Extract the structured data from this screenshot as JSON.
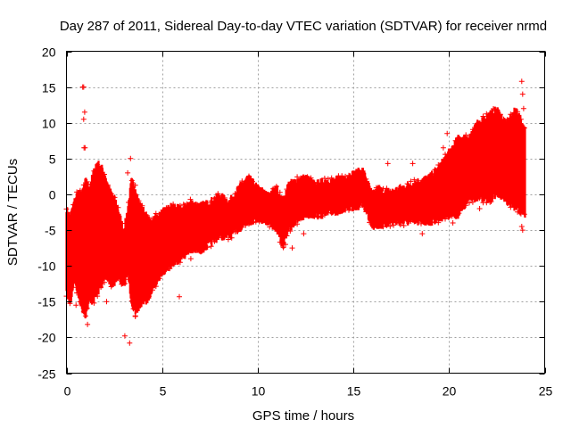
{
  "chart_data": {
    "type": "scatter",
    "title": "Day 287 of 2011, Sidereal Day-to-day VTEC variation (SDTVAR) for receiver nrmd",
    "xlabel": "GPS time / hours",
    "ylabel": "SDTVAR / TECUs",
    "xlim": [
      0,
      25
    ],
    "ylim": [
      -25,
      20
    ],
    "xticks": [
      0,
      5,
      10,
      15,
      20,
      25
    ],
    "yticks": [
      -25,
      -20,
      -15,
      -10,
      -5,
      0,
      5,
      10,
      15,
      20
    ],
    "xtick_labels": [
      "0",
      "5",
      "10",
      "15",
      "20",
      "25"
    ],
    "ytick_labels": [
      "-25",
      "-20",
      "-15",
      "-10",
      "-5",
      "0",
      "5",
      "10",
      "15",
      "20"
    ],
    "grid": true,
    "marker": "+",
    "color": "#ff0000",
    "series": [
      {
        "name": "SDTVAR",
        "band": {
          "x": [
            0.0,
            0.2,
            0.4,
            0.6,
            0.8,
            1.0,
            1.2,
            1.4,
            1.6,
            1.8,
            2.0,
            2.2,
            2.4,
            2.6,
            2.8,
            3.0,
            3.2,
            3.4,
            3.6,
            3.8,
            4.0,
            4.2,
            4.4,
            4.6,
            4.8,
            5.0,
            5.5,
            6.0,
            6.5,
            7.0,
            7.5,
            8.0,
            8.5,
            9.0,
            9.5,
            10.0,
            10.5,
            11.0,
            11.3,
            11.6,
            12.0,
            12.5,
            13.0,
            13.5,
            14.0,
            14.5,
            15.0,
            15.5,
            16.0,
            16.3,
            16.5,
            17.0,
            17.5,
            18.0,
            18.5,
            19.0,
            19.5,
            20.0,
            20.5,
            21.0,
            21.5,
            22.0,
            22.5,
            23.0,
            23.5,
            24.0
          ],
          "upper": [
            -2.0,
            -3.0,
            -1.0,
            0.5,
            0.0,
            2.0,
            1.0,
            3.0,
            4.5,
            4.0,
            3.0,
            1.0,
            0.0,
            -1.0,
            -3.0,
            -5.0,
            -2.0,
            2.0,
            1.0,
            -1.0,
            -2.0,
            -3.0,
            -4.0,
            -3.0,
            -3.0,
            -2.5,
            -1.5,
            -2.0,
            -1.0,
            -1.5,
            -1.0,
            0.0,
            -1.0,
            1.0,
            2.5,
            1.0,
            0.0,
            1.0,
            -1.0,
            1.5,
            2.0,
            2.5,
            1.5,
            2.0,
            2.0,
            2.5,
            3.0,
            3.5,
            0.0,
            1.0,
            0.5,
            0.5,
            1.0,
            1.5,
            2.0,
            2.5,
            4.0,
            6.0,
            8.0,
            8.0,
            10.0,
            11.0,
            12.0,
            10.0,
            12.0,
            9.0
          ],
          "lower": [
            -14.0,
            -15.5,
            -12.0,
            -14.0,
            -16.0,
            -17.0,
            -15.0,
            -15.0,
            -14.0,
            -13.0,
            -12.0,
            -12.0,
            -13.0,
            -12.0,
            -12.0,
            -13.0,
            -11.0,
            -15.0,
            -17.0,
            -16.0,
            -15.0,
            -15.0,
            -14.0,
            -13.0,
            -12.0,
            -11.0,
            -10.0,
            -9.0,
            -8.0,
            -8.0,
            -7.0,
            -6.0,
            -6.0,
            -5.0,
            -4.0,
            -3.5,
            -4.0,
            -5.0,
            -7.5,
            -5.0,
            -4.0,
            -3.0,
            -3.0,
            -3.0,
            -2.5,
            -2.5,
            -2.0,
            -1.5,
            -4.5,
            -4.5,
            -4.5,
            -4.0,
            -4.0,
            -4.0,
            -4.0,
            -4.0,
            -3.5,
            -3.0,
            -3.0,
            -1.0,
            -0.5,
            -1.0,
            0.0,
            -1.0,
            -2.0,
            -3.0
          ]
        },
        "outliers": {
          "x": [
            0.85,
            0.9,
            0.95,
            0.9,
            0.92,
            0.97,
            3.05,
            3.3,
            3.35,
            3.2,
            1.1,
            2.1,
            1.0,
            0.5,
            3.5,
            3.6,
            5.9,
            6.5,
            11.45,
            11.8,
            12.4,
            16.8,
            18.1,
            18.6,
            19.7,
            19.9,
            20.2,
            21.6,
            21.9,
            22.2,
            23.8,
            23.85,
            23.9,
            23.85,
            23.8
          ],
          "y": [
            15.0,
            15.0,
            11.5,
            10.5,
            6.5,
            6.5,
            -19.8,
            -20.8,
            5.0,
            3.0,
            -18.2,
            -15.0,
            -17.0,
            -15.5,
            -16.0,
            -17.0,
            -14.3,
            -9.0,
            -7.0,
            -7.5,
            -5.5,
            4.3,
            4.3,
            -5.5,
            6.5,
            8.5,
            -4.0,
            -2.0,
            0.0,
            -1.0,
            15.8,
            14.0,
            12.0,
            -5.0,
            -4.5
          ]
        }
      }
    ]
  }
}
